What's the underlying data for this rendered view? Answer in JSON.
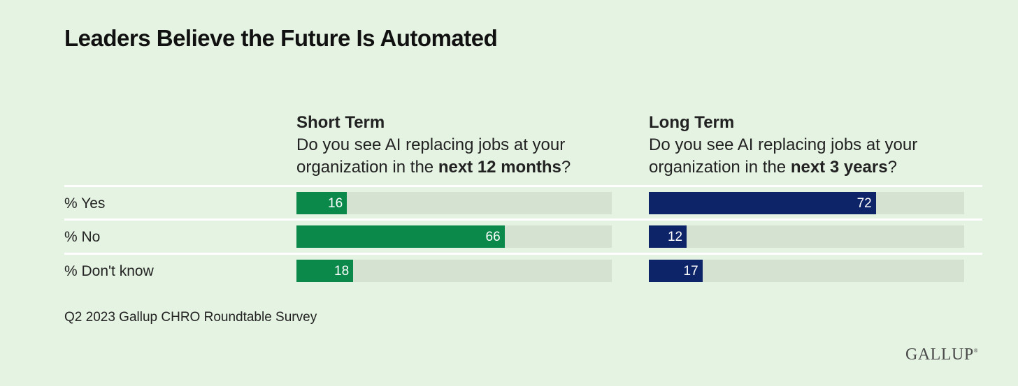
{
  "title": "Leaders Believe the Future Is Automated",
  "panels": [
    {
      "term": "Short Term",
      "question_pre": "Do you see AI replacing jobs at your organization in the ",
      "question_bold": "next 12 months",
      "question_post": "?"
    },
    {
      "term": "Long Term",
      "question_pre": "Do you see AI replacing jobs at your organization in the ",
      "question_bold": "next 3 years",
      "question_post": "?"
    }
  ],
  "rows": [
    "% Yes",
    "% No",
    "% Don't know"
  ],
  "source": "Q2 2023 Gallup CHRO Roundtable Survey",
  "logo": "GALLUP",
  "colors": {
    "background": "#e5f3e2",
    "short_term_bar": "#0b894b",
    "long_term_bar": "#0e2468",
    "track": "#d5e2d1"
  },
  "chart_data": [
    {
      "type": "bar",
      "orientation": "horizontal",
      "title": "Short Term",
      "categories": [
        "% Yes",
        "% No",
        "% Don't know"
      ],
      "values": [
        16,
        66,
        18
      ],
      "xlim": [
        0,
        100
      ]
    },
    {
      "type": "bar",
      "orientation": "horizontal",
      "title": "Long Term",
      "categories": [
        "% Yes",
        "% No",
        "% Don't know"
      ],
      "values": [
        72,
        12,
        17
      ],
      "xlim": [
        0,
        100
      ]
    }
  ]
}
